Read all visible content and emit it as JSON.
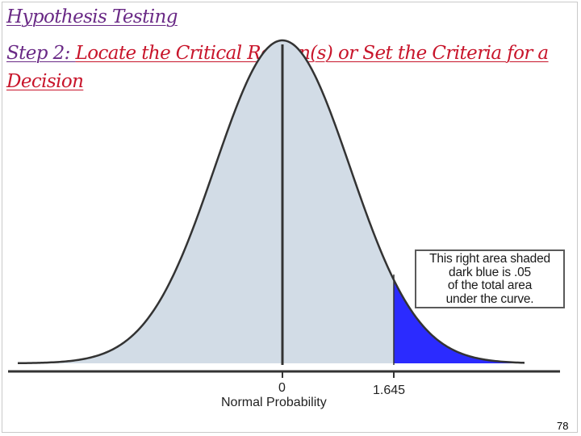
{
  "title": {
    "line1": "Hypothesis Testing",
    "step_prefix": "Step 2: ",
    "step_rest_a": "Locate the Critical Region(s) or Set the Criteria for a",
    "step_rest_b": "Decision"
  },
  "diagram": {
    "mean_label": "0",
    "critical_label": "1.645",
    "axis_title": "Normal Probability",
    "critical_value": 1.645,
    "tail_area": 0.05,
    "callout": [
      "This right area shaded",
      "dark blue is .05",
      "of the total area",
      "under the curve."
    ],
    "colors": {
      "body_fill": "#d2dce6",
      "tail_fill": "#2b2bff",
      "outline": "#333333"
    }
  },
  "page_number": "78"
}
